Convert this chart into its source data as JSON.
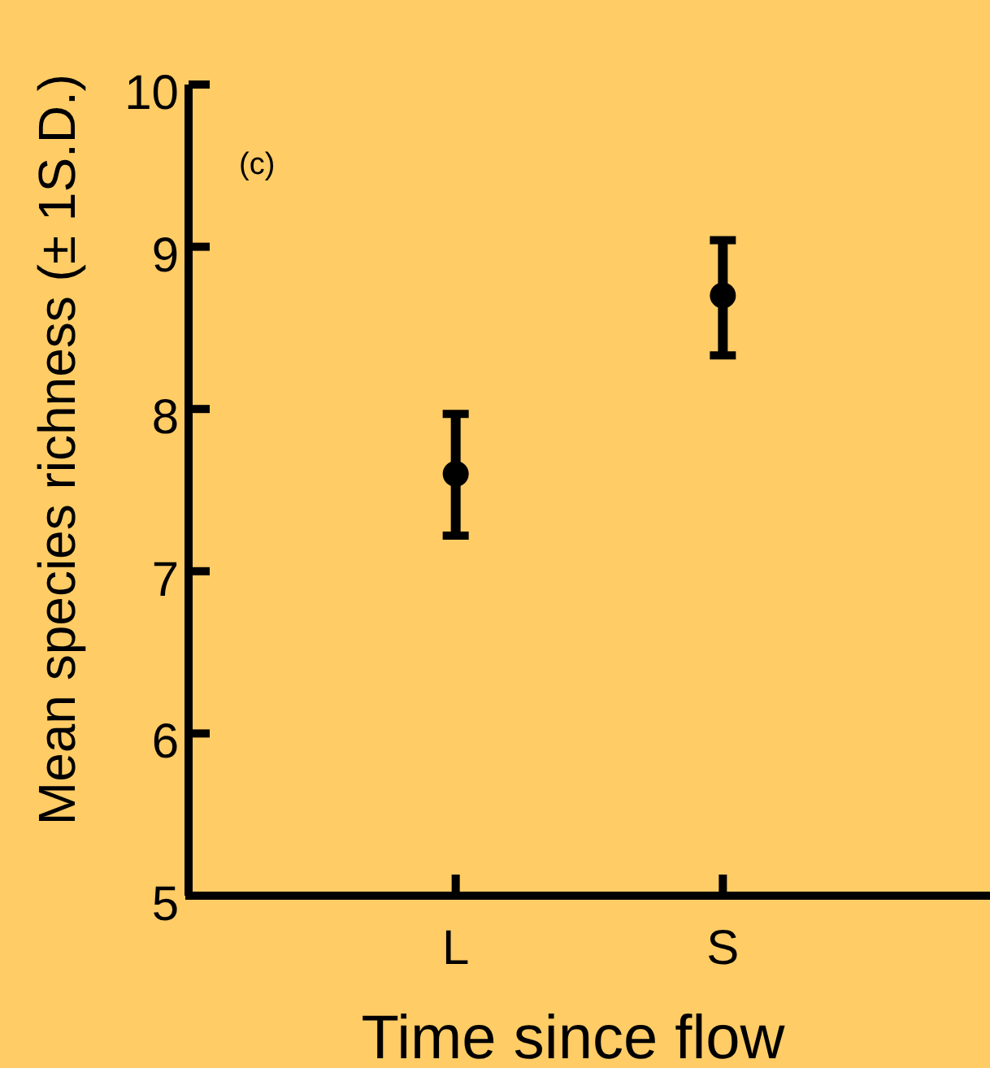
{
  "chart_data": {
    "type": "scatter",
    "xlabel": "Time since flow",
    "ylabel": "Mean species richness (± 1S.D.)",
    "categories": [
      "L",
      "S"
    ],
    "series": [
      {
        "color": "#000000",
        "values": [
          7.6,
          8.7
        ],
        "errors": [
          [
            7.22,
            7.97
          ],
          [
            8.33,
            9.04
          ]
        ]
      }
    ],
    "ylim": [
      5,
      10
    ],
    "yticks": [
      5,
      6,
      7,
      8,
      9,
      10
    ],
    "marker": "circle",
    "grid": false,
    "annotations": [
      "(c)"
    ]
  }
}
